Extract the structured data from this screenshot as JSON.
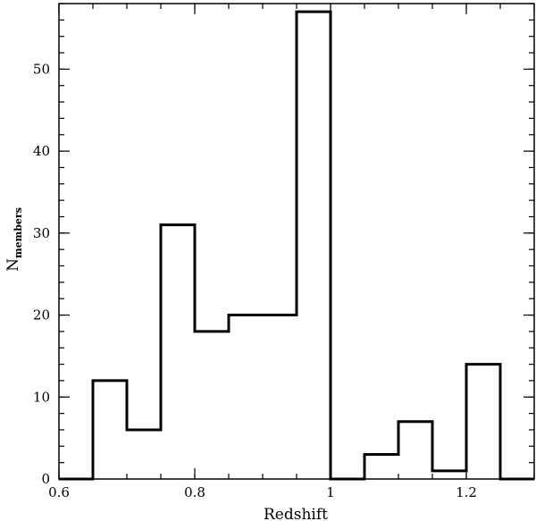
{
  "chart_data": {
    "type": "histogram",
    "xlabel": "Redshift",
    "ylabel": {
      "main": "N",
      "subscript": "members"
    },
    "xlim": [
      0.6,
      1.3
    ],
    "ylim": [
      0,
      58
    ],
    "x_ticks": [
      {
        "value": 0.6,
        "label": "0.6"
      },
      {
        "value": 0.8,
        "label": "0.8"
      },
      {
        "value": 1.0,
        "label": "1"
      },
      {
        "value": 1.2,
        "label": "1.2"
      }
    ],
    "y_ticks": [
      {
        "value": 0,
        "label": "0"
      },
      {
        "value": 10,
        "label": "10"
      },
      {
        "value": 20,
        "label": "20"
      },
      {
        "value": 30,
        "label": "30"
      },
      {
        "value": 40,
        "label": "40"
      },
      {
        "value": 50,
        "label": "50"
      }
    ],
    "x_minor_step": 0.05,
    "y_minor_step": 2,
    "bin_edges": [
      0.6,
      0.65,
      0.7,
      0.75,
      0.8,
      0.85,
      0.9,
      0.95,
      1.0,
      1.05,
      1.1,
      1.15,
      1.2,
      1.25,
      1.3
    ],
    "counts": [
      0,
      12,
      6,
      31,
      18,
      20,
      20,
      57,
      0,
      3,
      7,
      1,
      14,
      0
    ],
    "grid": false,
    "line_color": "#000000"
  }
}
